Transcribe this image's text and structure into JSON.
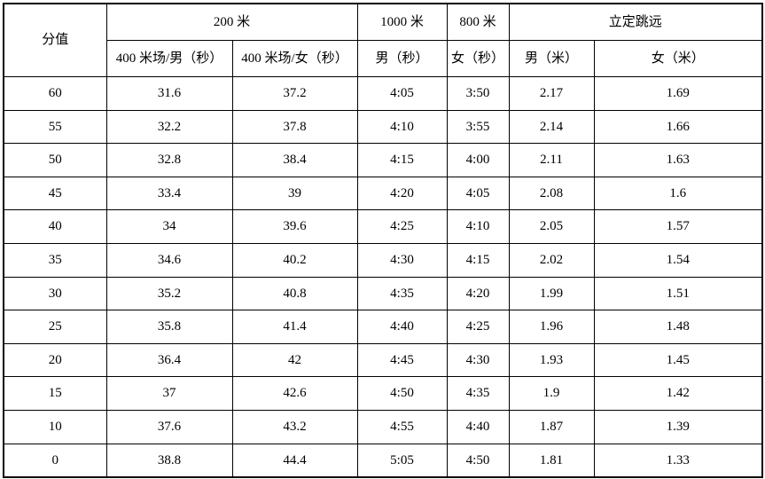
{
  "table": {
    "header": {
      "score": "分值",
      "group_200m": "200 米",
      "group_1000m": "1000 米",
      "group_800m": "800 米",
      "group_standing_long_jump": "立定跳远",
      "sub_400m_track_male_seconds": "400 米场/男（秒）",
      "sub_400m_track_female_seconds": "400 米场/女（秒）",
      "sub_male_seconds": "男（秒）",
      "sub_female_seconds": "女（秒）",
      "sub_male_meters": "男（米）",
      "sub_female_meters": "女（米）"
    },
    "rows": [
      [
        "60",
        "31.6",
        "37.2",
        "4:05",
        "3:50",
        "2.17",
        "1.69"
      ],
      [
        "55",
        "32.2",
        "37.8",
        "4:10",
        "3:55",
        "2.14",
        "1.66"
      ],
      [
        "50",
        "32.8",
        "38.4",
        "4:15",
        "4:00",
        "2.11",
        "1.63"
      ],
      [
        "45",
        "33.4",
        "39",
        "4:20",
        "4:05",
        "2.08",
        "1.6"
      ],
      [
        "40",
        "34",
        "39.6",
        "4:25",
        "4:10",
        "2.05",
        "1.57"
      ],
      [
        "35",
        "34.6",
        "40.2",
        "4:30",
        "4:15",
        "2.02",
        "1.54"
      ],
      [
        "30",
        "35.2",
        "40.8",
        "4:35",
        "4:20",
        "1.99",
        "1.51"
      ],
      [
        "25",
        "35.8",
        "41.4",
        "4:40",
        "4:25",
        "1.96",
        "1.48"
      ],
      [
        "20",
        "36.4",
        "42",
        "4:45",
        "4:30",
        "1.93",
        "1.45"
      ],
      [
        "15",
        "37",
        "42.6",
        "4:50",
        "4:35",
        "1.9",
        "1.42"
      ],
      [
        "10",
        "37.6",
        "43.2",
        "4:55",
        "4:40",
        "1.87",
        "1.39"
      ],
      [
        "0",
        "38.8",
        "44.4",
        "5:05",
        "4:50",
        "1.81",
        "1.33"
      ]
    ]
  }
}
